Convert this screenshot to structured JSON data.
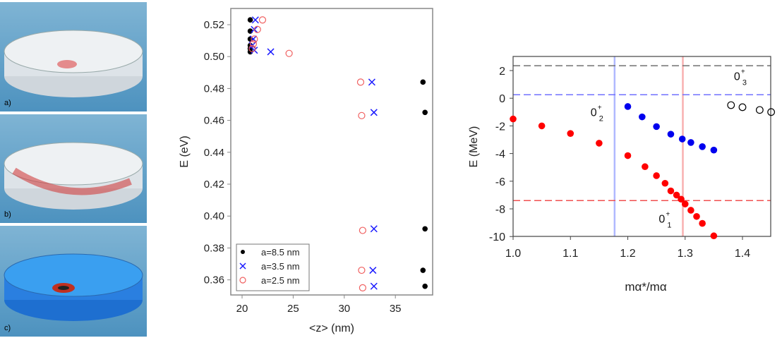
{
  "panels": [
    {
      "label": "a)"
    },
    {
      "label": "b)"
    },
    {
      "label": "c)"
    }
  ],
  "chart_data": [
    {
      "type": "scatter",
      "xlabel": "<z> (nm)",
      "ylabel": "E (eV)",
      "xlim": [
        19,
        39
      ],
      "ylim": [
        0.35,
        0.53
      ],
      "xticks": [
        20,
        25,
        30,
        35
      ],
      "yticks": [
        "0.36",
        "0.38",
        "0.40",
        "0.42",
        "0.44",
        "0.46",
        "0.48",
        "0.50",
        "0.52"
      ],
      "legend": "bottom-left",
      "series": [
        {
          "name": "a=8.5 nm",
          "marker": "dot",
          "color": "#000000",
          "points": [
            [
              20.8,
              0.523
            ],
            [
              20.8,
              0.516
            ],
            [
              20.8,
              0.511
            ],
            [
              20.8,
              0.507
            ],
            [
              20.8,
              0.505
            ],
            [
              20.8,
              0.503
            ],
            [
              37.7,
              0.484
            ],
            [
              37.9,
              0.465
            ],
            [
              37.9,
              0.392
            ],
            [
              37.7,
              0.366
            ],
            [
              37.9,
              0.356
            ]
          ]
        },
        {
          "name": "a=3.5 nm",
          "marker": "x",
          "color": "#1a1aff",
          "points": [
            [
              21.3,
              0.523
            ],
            [
              21.2,
              0.517
            ],
            [
              21.1,
              0.511
            ],
            [
              21.0,
              0.507
            ],
            [
              21.2,
              0.504
            ],
            [
              22.8,
              0.503
            ],
            [
              32.7,
              0.484
            ],
            [
              32.9,
              0.465
            ],
            [
              32.9,
              0.392
            ],
            [
              32.8,
              0.366
            ],
            [
              32.9,
              0.356
            ]
          ]
        },
        {
          "name": "a=2.5 nm",
          "marker": "circle",
          "color": "#f06060",
          "points": [
            [
              22.0,
              0.523
            ],
            [
              21.5,
              0.517
            ],
            [
              21.2,
              0.511
            ],
            [
              21.1,
              0.508
            ],
            [
              21.0,
              0.505
            ],
            [
              24.6,
              0.502
            ],
            [
              31.6,
              0.484
            ],
            [
              31.7,
              0.463
            ],
            [
              31.8,
              0.391
            ],
            [
              31.7,
              0.366
            ],
            [
              31.8,
              0.355
            ]
          ]
        }
      ]
    },
    {
      "type": "scatter",
      "xlabel": "mα*/mα",
      "ylabel": "E (MeV)",
      "xlim": [
        1.0,
        1.45
      ],
      "ylim": [
        -10,
        3
      ],
      "xticks": [
        "1.0",
        "1.1",
        "1.2",
        "1.3",
        "1.4"
      ],
      "yticks": [
        "-10",
        "-8",
        "-6",
        "-4",
        "-2",
        "0",
        "2"
      ],
      "hlines": [
        {
          "y": 2.35,
          "color": "#707070"
        },
        {
          "y": 0.25,
          "color": "#7070ff"
        },
        {
          "y": -7.4,
          "color": "#f05050"
        }
      ],
      "vlines": [
        {
          "x": 1.177,
          "color": "#b0b8ff"
        },
        {
          "x": 1.296,
          "color": "#f8b0b0"
        }
      ],
      "annotations": [
        {
          "text": "0",
          "sup": "+",
          "sub": "3",
          "x": 1.385,
          "y": 1.3
        },
        {
          "text": "0",
          "sup": "+",
          "sub": "2",
          "x": 1.135,
          "y": -1.3
        },
        {
          "text": "0",
          "sup": "+",
          "sub": "1",
          "x": 1.254,
          "y": -9.0
        }
      ],
      "series": [
        {
          "name": "0+1",
          "marker": "dot",
          "color": "#ff0000",
          "points": [
            [
              1.0,
              -1.5
            ],
            [
              1.05,
              -2.0
            ],
            [
              1.1,
              -2.55
            ],
            [
              1.15,
              -3.25
            ],
            [
              1.2,
              -4.15
            ],
            [
              1.23,
              -4.95
            ],
            [
              1.25,
              -5.6
            ],
            [
              1.265,
              -6.15
            ],
            [
              1.275,
              -6.7
            ],
            [
              1.285,
              -7.0
            ],
            [
              1.293,
              -7.3
            ],
            [
              1.3,
              -7.65
            ],
            [
              1.31,
              -8.1
            ],
            [
              1.32,
              -8.55
            ],
            [
              1.33,
              -9.05
            ],
            [
              1.35,
              -9.95
            ]
          ]
        },
        {
          "name": "0+2",
          "marker": "dot",
          "color": "#0000ee",
          "points": [
            [
              1.2,
              -0.6
            ],
            [
              1.225,
              -1.35
            ],
            [
              1.25,
              -2.05
            ],
            [
              1.275,
              -2.6
            ],
            [
              1.295,
              -2.95
            ],
            [
              1.31,
              -3.2
            ],
            [
              1.33,
              -3.5
            ],
            [
              1.35,
              -3.75
            ]
          ]
        },
        {
          "name": "0+3",
          "marker": "circle",
          "color": "#000000",
          "points": [
            [
              1.38,
              -0.5
            ],
            [
              1.4,
              -0.65
            ],
            [
              1.43,
              -0.85
            ],
            [
              1.45,
              -1.0
            ]
          ]
        }
      ]
    }
  ]
}
